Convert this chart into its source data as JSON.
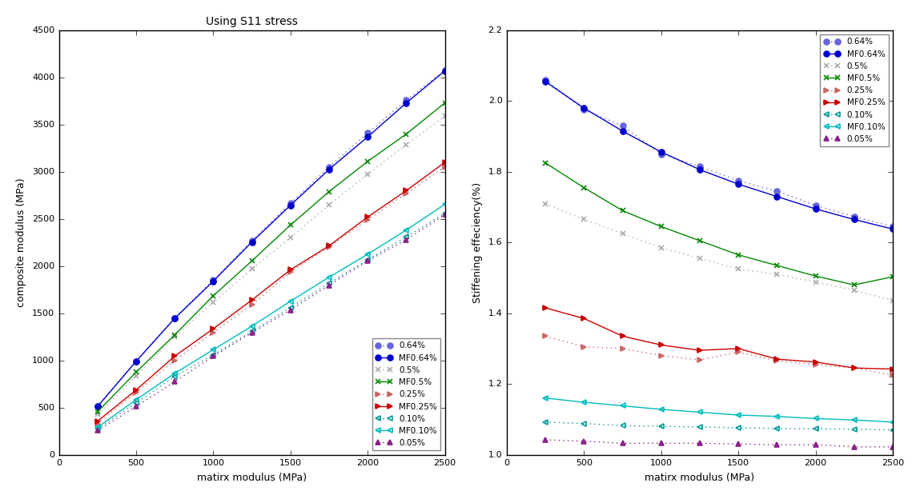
{
  "Em": [
    250,
    500,
    750,
    1000,
    1250,
    1500,
    1750,
    2000,
    2250,
    2500
  ],
  "series": [
    {
      "label": "0.64%",
      "color": "#6666dd",
      "linestyle": "dotted",
      "marker": "o",
      "marker_filled": true,
      "Ec": [
        510,
        990,
        1450,
        1850,
        2270,
        2665,
        3050,
        3410,
        3760,
        4075
      ],
      "ratio": [
        2.06,
        1.975,
        1.93,
        1.85,
        1.815,
        1.775,
        1.745,
        1.705,
        1.673,
        1.645
      ]
    },
    {
      "label": "MF0.64%",
      "color": "#0000cc",
      "linestyle": "solid",
      "marker": "o",
      "marker_filled": true,
      "Ec": [
        510,
        990,
        1445,
        1840,
        2255,
        2645,
        3025,
        3370,
        3730,
        4070
      ],
      "ratio": [
        2.055,
        1.98,
        1.915,
        1.856,
        1.806,
        1.765,
        1.73,
        1.695,
        1.665,
        1.638
      ]
    },
    {
      "label": "0.5%",
      "color": "#aaaaaa",
      "linestyle": "dotted",
      "marker": "x",
      "marker_filled": false,
      "Ec": [
        425,
        835,
        1250,
        1615,
        1970,
        2300,
        2650,
        2975,
        3285,
        3590
      ],
      "ratio": [
        1.71,
        1.665,
        1.625,
        1.585,
        1.555,
        1.525,
        1.51,
        1.488,
        1.465,
        1.436
      ]
    },
    {
      "label": "MF0.5%",
      "color": "#008800",
      "linestyle": "solid",
      "marker": "x",
      "marker_filled": false,
      "Ec": [
        455,
        875,
        1270,
        1685,
        2055,
        2435,
        2790,
        3110,
        3400,
        3730
      ],
      "ratio": [
        1.825,
        1.755,
        1.69,
        1.645,
        1.605,
        1.565,
        1.535,
        1.505,
        1.48,
        1.503
      ]
    },
    {
      "label": "0.25%",
      "color": "#cc6666",
      "linestyle": "dotted",
      "marker": ">",
      "marker_filled": true,
      "Ec": [
        330,
        660,
        1000,
        1295,
        1590,
        1935,
        2205,
        2490,
        2770,
        3050
      ],
      "ratio": [
        1.335,
        1.305,
        1.3,
        1.28,
        1.268,
        1.29,
        1.265,
        1.255,
        1.245,
        1.225
      ]
    },
    {
      "label": "MF0.25%",
      "color": "#cc0000",
      "linestyle": "solid",
      "marker": ">",
      "marker_filled": true,
      "Ec": [
        355,
        685,
        1045,
        1335,
        1640,
        1960,
        2215,
        2520,
        2800,
        3100
      ],
      "ratio": [
        1.415,
        1.385,
        1.335,
        1.31,
        1.295,
        1.3,
        1.27,
        1.262,
        1.245,
        1.242
      ]
    },
    {
      "label": "0.10%",
      "color": "#009999",
      "linestyle": "dotted",
      "marker": "<",
      "marker_filled": false,
      "Ec": [
        273,
        548,
        830,
        1060,
        1308,
        1560,
        1820,
        2065,
        2310,
        2560
      ],
      "ratio": [
        1.092,
        1.088,
        1.082,
        1.08,
        1.078,
        1.076,
        1.074,
        1.073,
        1.072,
        1.07
      ]
    },
    {
      "label": "MF0.10%",
      "color": "#00bbbb",
      "linestyle": "solid",
      "marker": "<",
      "marker_filled": false,
      "Ec": [
        290,
        582,
        862,
        1113,
        1362,
        1627,
        1882,
        2125,
        2382,
        2655
      ],
      "ratio": [
        1.16,
        1.148,
        1.138,
        1.128,
        1.12,
        1.112,
        1.108,
        1.102,
        1.098,
        1.092
      ]
    },
    {
      "label": "0.05%",
      "color": "#882288",
      "linestyle": "dotted",
      "marker": "^",
      "marker_filled": true,
      "Ec": [
        255,
        510,
        773,
        1044,
        1293,
        1535,
        1798,
        2055,
        2280,
        2545
      ],
      "ratio": [
        1.042,
        1.038,
        1.032,
        1.032,
        1.032,
        1.03,
        1.028,
        1.028,
        1.022,
        1.022
      ]
    }
  ],
  "left_title": "Using S11 stress",
  "left_xlabel": "matirx modulus (MPa)",
  "left_ylabel": "composite modulus (MPa)",
  "left_xlim": [
    0,
    2500
  ],
  "left_ylim": [
    0,
    4500
  ],
  "right_xlabel": "matirx modulus (MPa)",
  "right_ylabel": "Stiffening effeciency(%)",
  "right_xlim": [
    0,
    2500
  ],
  "right_ylim": [
    1.0,
    2.2
  ],
  "bg_color": "#ffffff",
  "left_xticks": [
    0,
    500,
    1000,
    1500,
    2000,
    2500
  ],
  "left_yticks": [
    0,
    500,
    1000,
    1500,
    2000,
    2500,
    3000,
    3500,
    4000,
    4500
  ],
  "right_xticks": [
    0,
    500,
    1000,
    1500,
    2000,
    2500
  ],
  "right_yticks": [
    1.0,
    1.2,
    1.4,
    1.6,
    1.8,
    2.0,
    2.2
  ]
}
